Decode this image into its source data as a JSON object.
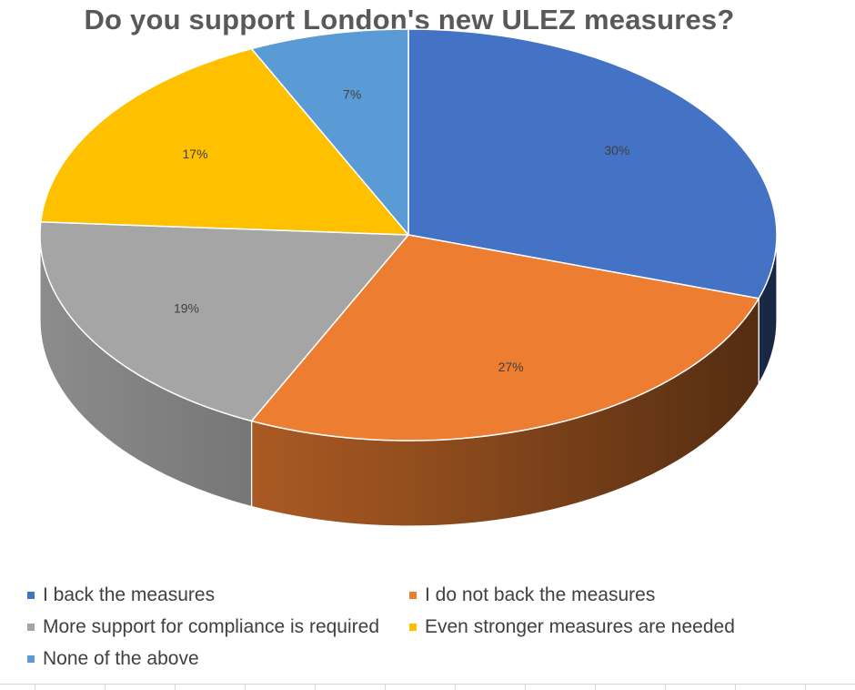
{
  "chart_data": {
    "type": "pie",
    "title": "Do you support London's new ULEZ measures?",
    "categories": [
      "I back the measures",
      "I do not back the measures",
      "More support for compliance is required",
      "Even stronger measures are needed",
      "None of the above"
    ],
    "values": [
      30,
      27,
      19,
      17,
      7
    ],
    "data_labels": [
      "30%",
      "27%",
      "19%",
      "17%",
      "7%"
    ],
    "colors": [
      "#4472c4",
      "#ed7d31",
      "#a5a5a5",
      "#ffc000",
      "#5b9bd5"
    ],
    "style": "3d",
    "legend_position": "bottom"
  }
}
